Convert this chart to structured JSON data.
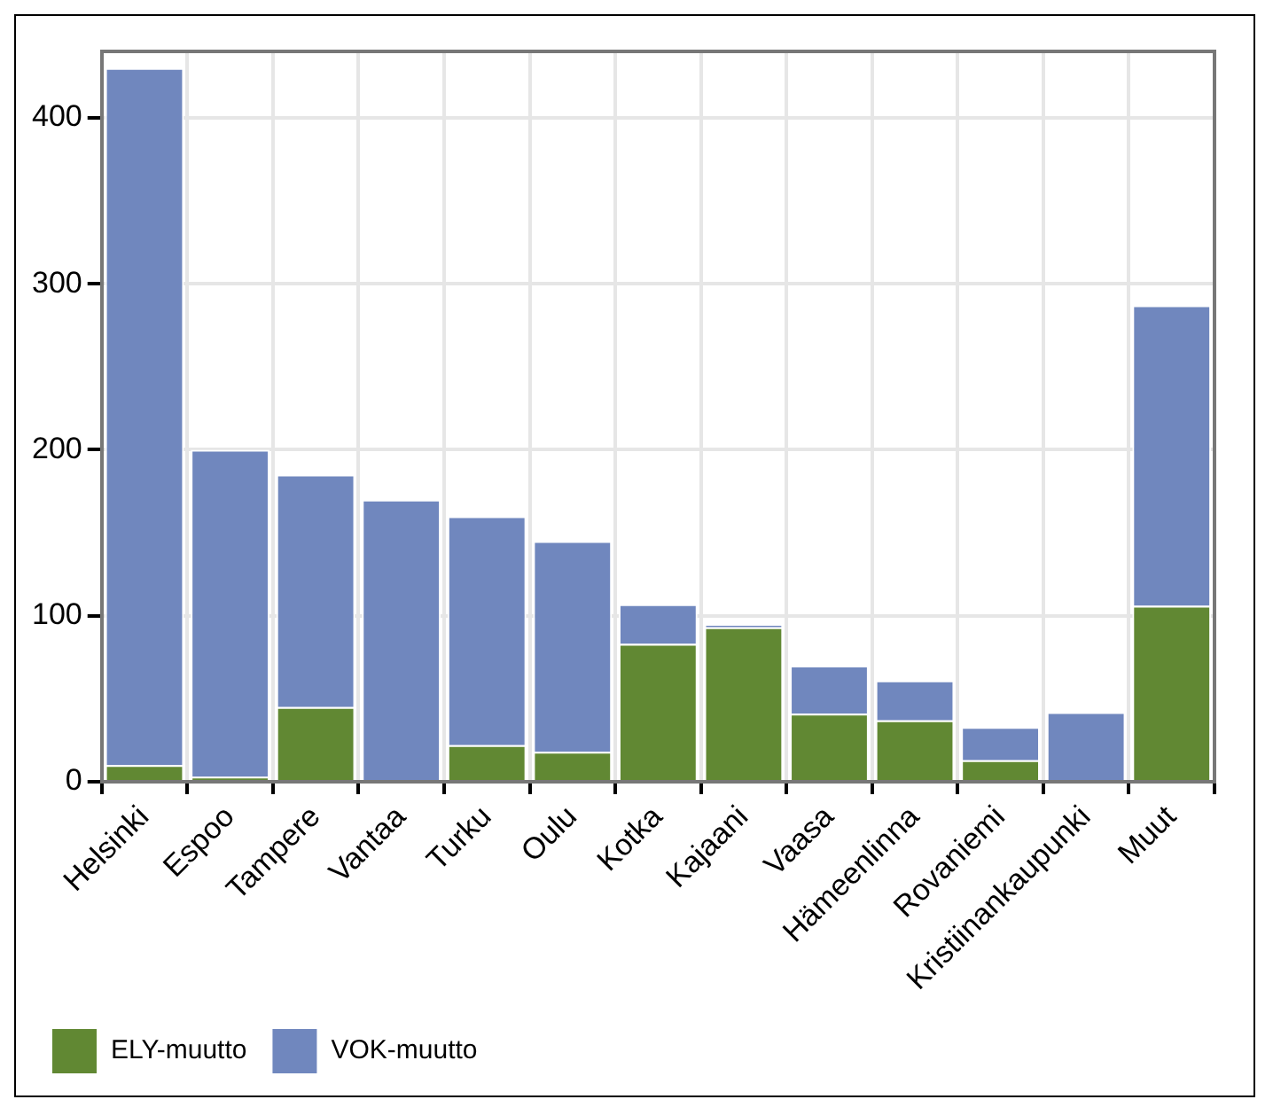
{
  "chart_data": {
    "type": "bar",
    "stacked": true,
    "categories": [
      "Helsinki",
      "Espoo",
      "Tampere",
      "Vantaa",
      "Turku",
      "Oulu",
      "Kotka",
      "Kajaani",
      "Vaasa",
      "Hämeenlinna",
      "Rovaniemi",
      "Kristiinankaupunki",
      "Muut"
    ],
    "series": [
      {
        "name": "ELY-muutto",
        "color": "#618833",
        "values": [
          10,
          3,
          45,
          0,
          22,
          18,
          83,
          93,
          41,
          37,
          13,
          0,
          106
        ]
      },
      {
        "name": "VOK-muutto",
        "color": "#7087be",
        "values": [
          420,
          197,
          140,
          170,
          138,
          127,
          24,
          2,
          29,
          24,
          20,
          42,
          181
        ]
      }
    ],
    "ylim": [
      0,
      440
    ],
    "yticks": [
      0,
      100,
      200,
      300,
      400
    ],
    "grid": true,
    "legend": "bottom left"
  }
}
